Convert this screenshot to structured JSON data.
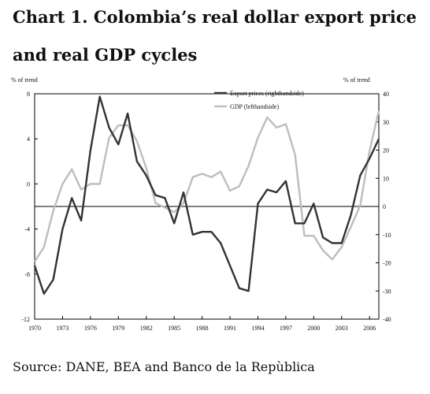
{
  "title_line_1": "Chart 1.  Colombia’s real dollar export price",
  "title_line_2": "and real GDP cycles",
  "source": "Source: DANE, BEA and Banco de la Repùblica",
  "colors": {
    "export": "#333333",
    "gdp": "#bdbdbd",
    "axis": "#000000"
  },
  "chart_data": {
    "type": "line",
    "left_axis": {
      "unit_label": "% of trend",
      "range": [
        -12,
        8
      ],
      "ticks": [
        8,
        4,
        0,
        -4,
        -8,
        -12
      ]
    },
    "right_axis": {
      "unit_label": "% of trend",
      "range": [
        -40,
        40
      ],
      "ticks": [
        40,
        30,
        20,
        10,
        0,
        -10,
        -20,
        -30,
        -40
      ]
    },
    "x_range": [
      1970,
      2007
    ],
    "x_ticks": [
      1970,
      1973,
      1976,
      1979,
      1982,
      1985,
      1988,
      1991,
      1994,
      1997,
      2000,
      2003,
      2006
    ],
    "legend_position": "top-right",
    "reference_line": {
      "axis": "right",
      "value": 0
    },
    "series": [
      {
        "name": "Export prices (righthandside)",
        "axis": "right",
        "x": [
          1970,
          1971,
          1972,
          1973,
          1974,
          1975,
          1976,
          1977,
          1978,
          1979,
          1980,
          1981,
          1982,
          1983,
          1984,
          1985,
          1986,
          1987,
          1988,
          1989,
          1990,
          1991,
          1992,
          1993,
          1994,
          1995,
          1996,
          1997,
          1998,
          1999,
          2000,
          2001,
          2002,
          2003,
          2004,
          2005,
          2006,
          2007
        ],
        "y": [
          -21,
          -31,
          -26,
          -8,
          3,
          -5,
          20,
          39,
          28,
          22,
          33,
          16,
          11,
          4,
          3,
          -6,
          5,
          -10,
          -9,
          -9,
          -13,
          -21,
          -29,
          -30,
          1,
          6,
          5,
          9,
          -6,
          -6,
          1,
          -11,
          -13,
          -13,
          -3,
          11,
          17,
          24
        ]
      },
      {
        "name": "GDP (lefthandside)",
        "axis": "left",
        "x": [
          1970,
          1971,
          1972,
          1973,
          1974,
          1975,
          1976,
          1977,
          1978,
          1979,
          1980,
          1981,
          1982,
          1983,
          1984,
          1985,
          1986,
          1987,
          1988,
          1989,
          1990,
          1991,
          1992,
          1993,
          1994,
          1995,
          1996,
          1997,
          1998,
          1999,
          2000,
          2001,
          2002,
          2003,
          2004,
          2005,
          2006,
          2007
        ],
        "y": [
          -6.9,
          -5.6,
          -2.4,
          0,
          1.3,
          -0.5,
          0,
          0,
          4.1,
          5.2,
          5.2,
          3.8,
          1.4,
          -1.7,
          -2.1,
          -2.5,
          -1.7,
          0.6,
          0.9,
          0.6,
          1.1,
          -0.6,
          -0.2,
          1.6,
          4.1,
          5.9,
          5.0,
          5.3,
          2.6,
          -4.6,
          -4.6,
          -5.9,
          -6.7,
          -5.6,
          -3.8,
          -1.9,
          2.9,
          6.5
        ]
      }
    ]
  }
}
